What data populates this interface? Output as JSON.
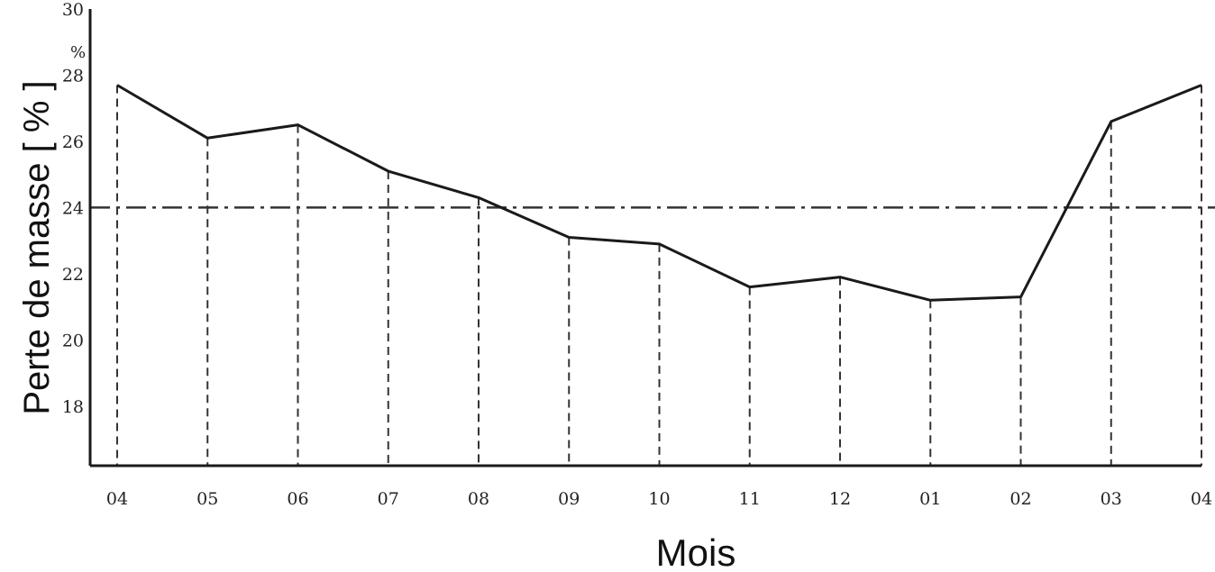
{
  "chart_data": {
    "type": "line",
    "xlabel": "Mois",
    "ylabel": "Perte de masse  [ % ]",
    "unit_label": "%",
    "categories": [
      "04",
      "05",
      "06",
      "07",
      "08",
      "09",
      "10",
      "11",
      "12",
      "01",
      "02",
      "03",
      "04"
    ],
    "series": [
      {
        "values": [
          27.7,
          26.1,
          26.5,
          25.1,
          24.3,
          23.1,
          22.9,
          21.6,
          21.9,
          21.2,
          21.3,
          26.6,
          27.7
        ]
      }
    ],
    "reference_line": {
      "value": 24.0,
      "style": "dash-dot"
    },
    "yticks": [
      18,
      20,
      22,
      24,
      26,
      28,
      30
    ],
    "ylim": [
      16.2,
      30
    ],
    "grid": "vertical dashed drop lines from each data point to the x-axis",
    "line_color": "#1a1a1a"
  }
}
